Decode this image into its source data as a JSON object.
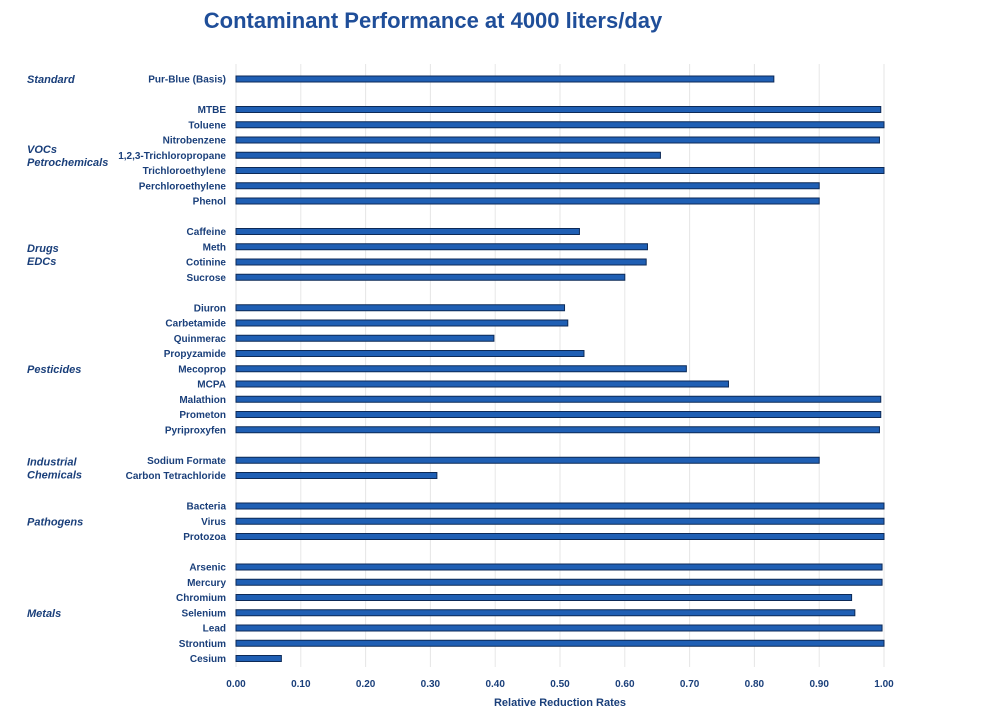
{
  "chart_data": {
    "type": "bar",
    "orientation": "horizontal",
    "title": "Contaminant Performance at 4000 liters/day",
    "xlabel": "Relative Reduction Rates",
    "ylabel": "",
    "xlim": [
      0,
      1.0
    ],
    "x_ticks": [
      "0.00",
      "0.10",
      "0.20",
      "0.30",
      "0.40",
      "0.50",
      "0.60",
      "0.70",
      "0.80",
      "0.90",
      "1.00"
    ],
    "grid": true,
    "legend": "none",
    "colors": {
      "bar": "#1f5fb4",
      "bar_border": "#0d2a57",
      "text": "#1a3f7a",
      "grid": "#e6e6e6"
    },
    "groups": [
      {
        "label_lines": [
          "Standard"
        ],
        "items": [
          {
            "label": "Pur-Blue (Basis)",
            "value": 0.83
          }
        ]
      },
      {
        "label_lines": [
          "VOCs",
          "Petrochemicals"
        ],
        "items": [
          {
            "label": "MTBE",
            "value": 0.995
          },
          {
            "label": "Toluene",
            "value": 1.0
          },
          {
            "label": "Nitrobenzene",
            "value": 0.993
          },
          {
            "label": "1,2,3-Trichloropropane",
            "value": 0.655
          },
          {
            "label": "Trichloroethylene",
            "value": 1.0
          },
          {
            "label": "Perchloroethylene",
            "value": 0.9
          },
          {
            "label": "Phenol",
            "value": 0.9
          }
        ]
      },
      {
        "label_lines": [
          "Drugs",
          "EDCs"
        ],
        "items": [
          {
            "label": "Caffeine",
            "value": 0.53
          },
          {
            "label": "Meth",
            "value": 0.635
          },
          {
            "label": "Cotinine",
            "value": 0.633
          },
          {
            "label": "Sucrose",
            "value": 0.6
          }
        ]
      },
      {
        "label_lines": [
          "Pesticides"
        ],
        "items": [
          {
            "label": "Diuron",
            "value": 0.507
          },
          {
            "label": "Carbetamide",
            "value": 0.512
          },
          {
            "label": "Quinmerac",
            "value": 0.398
          },
          {
            "label": "Propyzamide",
            "value": 0.537
          },
          {
            "label": "Mecoprop",
            "value": 0.695
          },
          {
            "label": "MCPA",
            "value": 0.76
          },
          {
            "label": "Malathion",
            "value": 0.995
          },
          {
            "label": "Prometon",
            "value": 0.995
          },
          {
            "label": "Pyriproxyfen",
            "value": 0.993
          }
        ]
      },
      {
        "label_lines": [
          "Industrial",
          "Chemicals"
        ],
        "items": [
          {
            "label": "Sodium Formate",
            "value": 0.9
          },
          {
            "label": "Carbon Tetrachloride",
            "value": 0.31
          }
        ]
      },
      {
        "label_lines": [
          "Pathogens"
        ],
        "items": [
          {
            "label": "Bacteria",
            "value": 1.0
          },
          {
            "label": "Virus",
            "value": 1.0
          },
          {
            "label": "Protozoa",
            "value": 1.0
          }
        ]
      },
      {
        "label_lines": [
          "Metals"
        ],
        "items": [
          {
            "label": "Arsenic",
            "value": 0.997
          },
          {
            "label": "Mercury",
            "value": 0.997
          },
          {
            "label": "Chromium",
            "value": 0.95
          },
          {
            "label": "Selenium",
            "value": 0.955
          },
          {
            "label": "Lead",
            "value": 0.997
          },
          {
            "label": "Strontium",
            "value": 1.0
          },
          {
            "label": "Cesium",
            "value": 0.07
          }
        ]
      }
    ]
  }
}
